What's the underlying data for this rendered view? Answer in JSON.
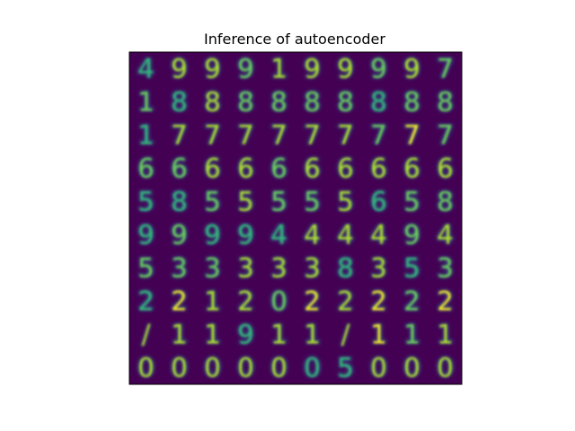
{
  "chart_data": {
    "type": "heatmap",
    "title": "Inference of autoencoder",
    "xlabel": "",
    "ylabel": "",
    "grid": false,
    "axis_ticks": false,
    "colormap": "viridis",
    "rows": 10,
    "cols": 10,
    "cells": [
      [
        "4",
        "9",
        "9",
        "9",
        "1",
        "9",
        "9",
        "9",
        "9",
        "7"
      ],
      [
        "1",
        "8",
        "8",
        "8",
        "8",
        "8",
        "8",
        "8",
        "8",
        "8"
      ],
      [
        "1",
        "7",
        "7",
        "7",
        "7",
        "7",
        "7",
        "7",
        "7",
        "7"
      ],
      [
        "6",
        "6",
        "6",
        "6",
        "6",
        "6",
        "6",
        "6",
        "6",
        "6"
      ],
      [
        "5",
        "8",
        "5",
        "5",
        "5",
        "5",
        "5",
        "6",
        "5",
        "8"
      ],
      [
        "9",
        "9",
        "9",
        "9",
        "4",
        "4",
        "4",
        "4",
        "9",
        "4"
      ],
      [
        "5",
        "3",
        "3",
        "3",
        "3",
        "3",
        "8",
        "3",
        "5",
        "3"
      ],
      [
        "2",
        "2",
        "1",
        "2",
        "0",
        "2",
        "2",
        "2",
        "2",
        "2"
      ],
      [
        "/",
        "1",
        "1",
        "9",
        "1",
        "1",
        "/",
        "1",
        "1",
        "1"
      ],
      [
        "0",
        "0",
        "0",
        "0",
        "0",
        "0",
        "5",
        "0",
        "0",
        "0"
      ]
    ],
    "intensity": [
      [
        0.45,
        0.7,
        0.75,
        0.6,
        0.7,
        0.75,
        0.75,
        0.55,
        0.8,
        0.6
      ],
      [
        0.6,
        0.4,
        0.85,
        0.5,
        0.6,
        0.65,
        0.55,
        0.45,
        0.5,
        0.55
      ],
      [
        0.45,
        0.85,
        0.85,
        0.85,
        0.7,
        0.85,
        0.8,
        0.6,
        0.9,
        0.55
      ],
      [
        0.55,
        0.6,
        0.75,
        0.75,
        0.65,
        0.8,
        0.8,
        0.7,
        0.7,
        0.8
      ],
      [
        0.4,
        0.35,
        0.6,
        0.7,
        0.65,
        0.55,
        0.75,
        0.35,
        0.5,
        0.55
      ],
      [
        0.4,
        0.6,
        0.45,
        0.35,
        0.45,
        0.85,
        0.8,
        0.8,
        0.65,
        0.75
      ],
      [
        0.5,
        0.55,
        0.65,
        0.7,
        0.7,
        0.85,
        0.4,
        0.85,
        0.35,
        0.6
      ],
      [
        0.4,
        0.9,
        0.85,
        0.85,
        0.6,
        0.95,
        0.85,
        0.95,
        0.55,
        0.9
      ],
      [
        0.75,
        0.85,
        0.8,
        0.45,
        0.75,
        0.7,
        0.75,
        0.9,
        0.65,
        0.85
      ],
      [
        0.8,
        0.75,
        0.8,
        0.8,
        0.7,
        0.3,
        0.45,
        0.75,
        0.7,
        0.75
      ]
    ],
    "background_color": "#440154",
    "glyph_colors": [
      "#31688e",
      "#26828e",
      "#35b779",
      "#6ece58",
      "#b5de2b",
      "#fde725"
    ]
  }
}
